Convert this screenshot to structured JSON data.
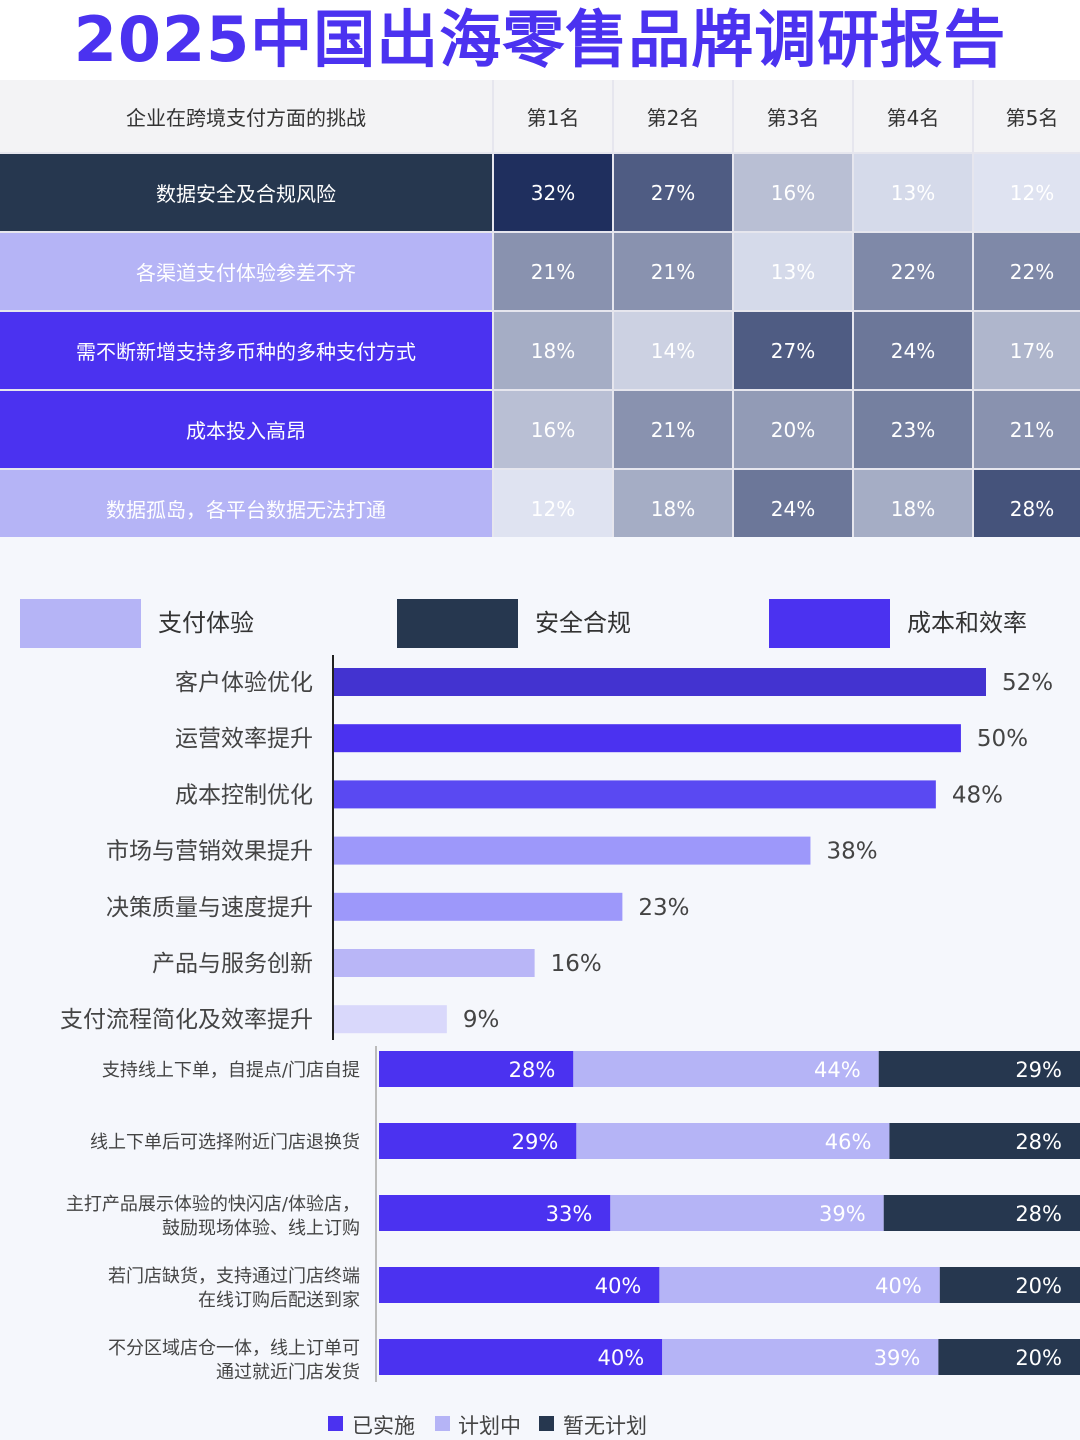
{
  "title": "2025中国出海零售品牌调研报告",
  "chart_data": [
    {
      "type": "heatmap",
      "corner_label": "企业在跨境支付方面的挑战",
      "columns": [
        "第1名",
        "第2名",
        "第3名",
        "第4名",
        "第5名"
      ],
      "rows": [
        {
          "label": "数据安全及合规风险",
          "color": "#26374f",
          "values": [
            32,
            27,
            16,
            13,
            12
          ]
        },
        {
          "label": "各渠道支付体验参差不齐",
          "color": "#b5b4f6",
          "values": [
            21,
            21,
            13,
            22,
            22
          ]
        },
        {
          "label": "需不断新增支持多币种的多种支付方式",
          "color": "#4b32f0",
          "values": [
            18,
            14,
            27,
            24,
            17
          ]
        },
        {
          "label": "成本投入高昂",
          "color": "#4b32f0",
          "values": [
            16,
            21,
            20,
            23,
            21
          ]
        },
        {
          "label": "数据孤岛，各平台数据无法打通",
          "color": "#b5b4f6",
          "values": [
            12,
            18,
            24,
            18,
            28
          ]
        }
      ]
    },
    {
      "type": "bar",
      "orientation": "horizontal",
      "legend": [
        {
          "name": "支付体验",
          "color": "#b5b4f6"
        },
        {
          "name": "安全合规",
          "color": "#26374f"
        },
        {
          "name": "成本和效率",
          "color": "#4b32f0"
        }
      ],
      "legend_position": "top",
      "categories": [
        "客户体验优化",
        "运营效率提升",
        "成本控制优化",
        "市场与营销效果提升",
        "决策质量与速度提升",
        "产品与服务创新",
        "支付流程简化及效率提升"
      ],
      "values": [
        52,
        50,
        48,
        38,
        23,
        16,
        9
      ],
      "colors": [
        "#4333d0",
        "#4b32f0",
        "#5a49f2",
        "#9d98fa",
        "#9d98fa",
        "#b9b6f7",
        "#d9d8fb"
      ],
      "value_suffix": "%",
      "xlim": [
        0,
        55
      ]
    },
    {
      "type": "bar",
      "orientation": "horizontal",
      "stacked": true,
      "categories": [
        [
          "支持线上下单，自提点/门店自提"
        ],
        [
          "线上下单后可选择附近门店退换货"
        ],
        [
          "主打产品展示体验的快闪店/体验店，",
          "鼓励现场体验、线上订购"
        ],
        [
          "若门店缺货，支持通过门店终端",
          "在线订购后配送到家"
        ],
        [
          "不分区域店仓一体，线上订单可",
          "通过就近门店发货"
        ]
      ],
      "series": [
        {
          "name": "已实施",
          "color": "#4b32f0",
          "values": [
            28,
            29,
            33,
            40,
            40
          ]
        },
        {
          "name": "计划中",
          "color": "#b5b4f6",
          "values": [
            44,
            46,
            39,
            40,
            39
          ]
        },
        {
          "name": "暂无计划",
          "color": "#26374f",
          "values": [
            29,
            28,
            28,
            20,
            20
          ]
        }
      ],
      "value_suffix": "%",
      "legend_position": "bottom"
    }
  ]
}
